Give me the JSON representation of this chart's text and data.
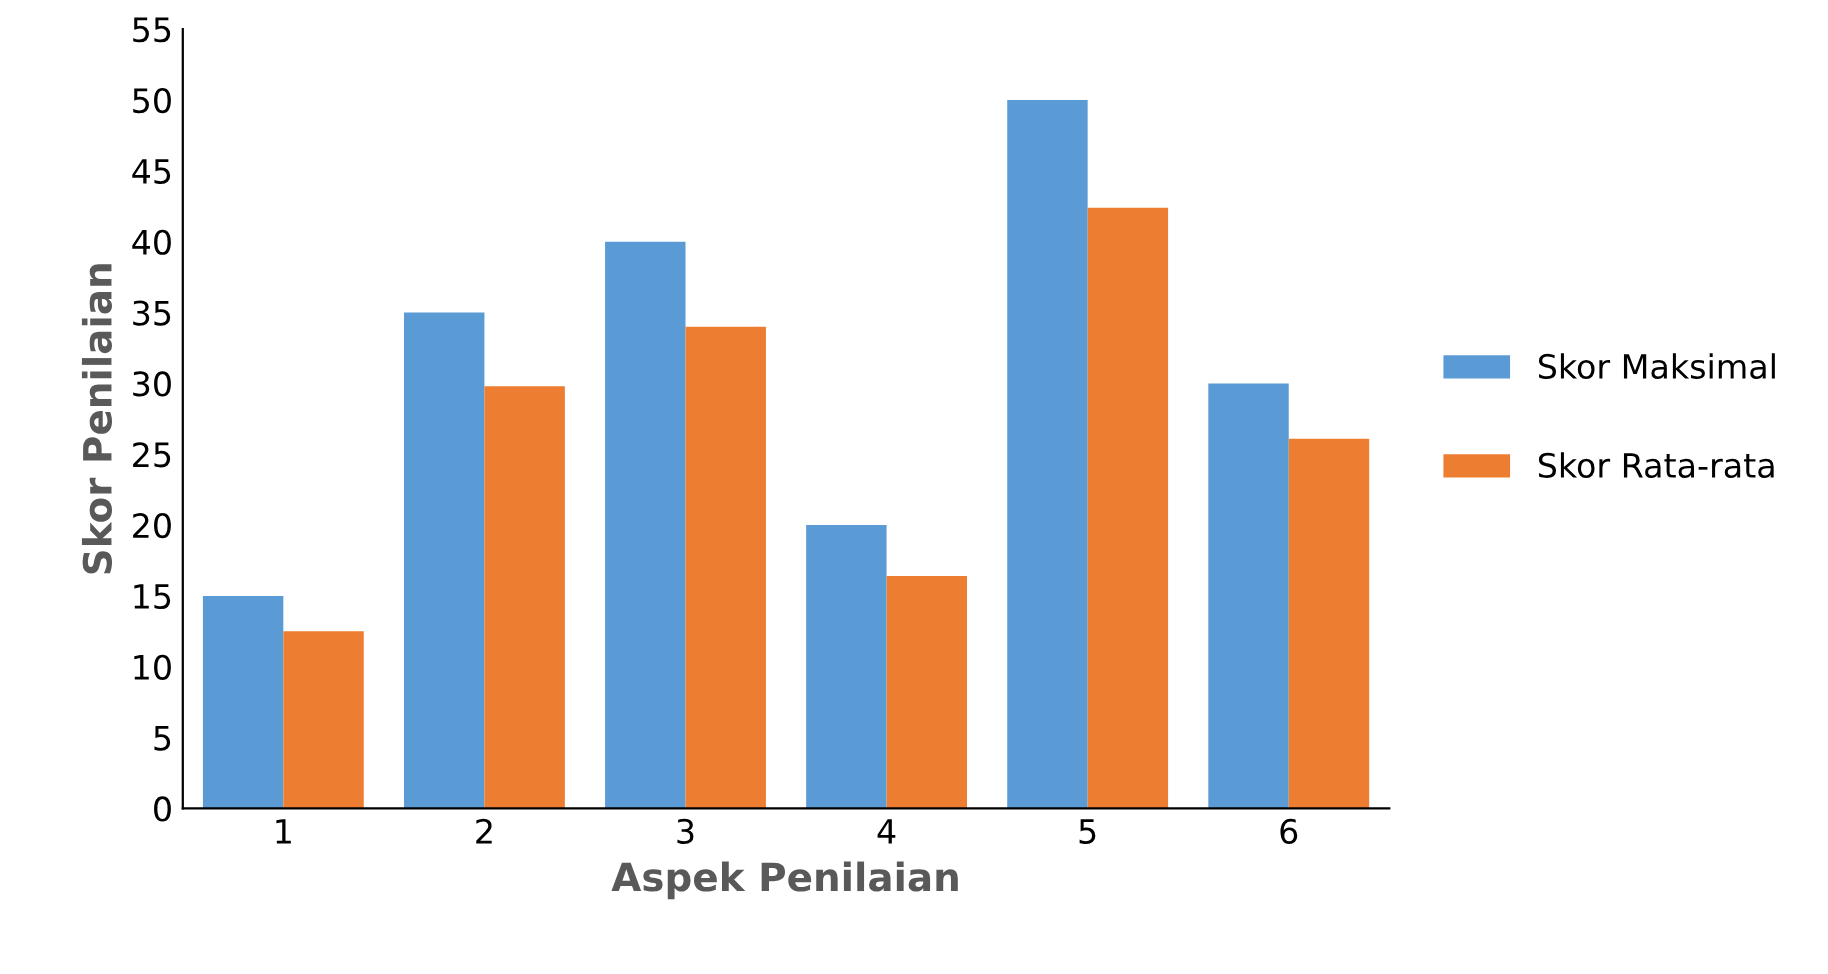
{
  "chart_data": {
    "type": "bar",
    "xlabel": "Aspek Penilaian",
    "ylabel": "Skor Penilaian",
    "categories": [
      "1",
      "2",
      "3",
      "4",
      "5",
      "6"
    ],
    "series": [
      {
        "name": "Skor Maksimal",
        "color": "#5b9bd5",
        "values": [
          15,
          35,
          40,
          20,
          50,
          30
        ]
      },
      {
        "name": "Skor Rata-rata",
        "color": "#ed7d31",
        "values": [
          12.5,
          29.8,
          34.0,
          16.4,
          42.4,
          26.1
        ]
      }
    ],
    "ylim": [
      0,
      55
    ],
    "yticks": [
      0,
      5,
      10,
      15,
      20,
      25,
      30,
      35,
      40,
      45,
      50,
      55
    ],
    "grid": false,
    "legend": "right"
  }
}
